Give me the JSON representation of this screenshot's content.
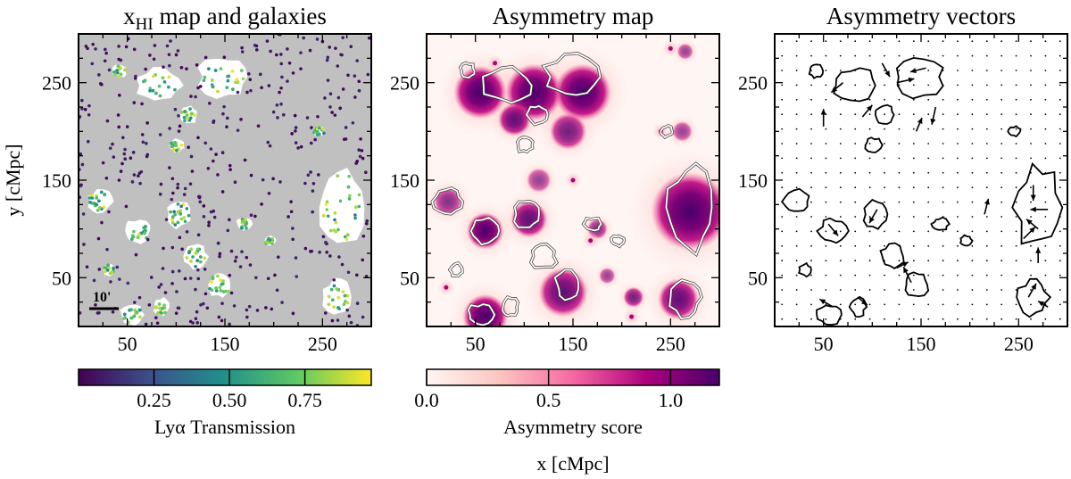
{
  "figure": {
    "ylabel": "y [cMpc]",
    "xlabel": "x [cMpc]",
    "scalebar_label": "10'"
  },
  "axes": {
    "xlim": [
      0,
      300
    ],
    "ylim": [
      0,
      300
    ],
    "xticks": [
      50,
      150,
      250
    ],
    "yticks": [
      50,
      150,
      250
    ]
  },
  "panels": [
    {
      "id": "xhi",
      "title_main": "x",
      "title_sub": "HI",
      "title_rest": " map and galaxies",
      "background": "#c0c0c0",
      "colorbar": {
        "label": "Lyα Transmission",
        "ticks": [
          "0.25",
          "0.50",
          "0.75"
        ],
        "tick_values": [
          0.25,
          0.5,
          0.75
        ],
        "range": [
          0.0,
          0.97
        ],
        "colormap": [
          "#440154",
          "#3b528b",
          "#21918c",
          "#5ec962",
          "#fde725"
        ]
      }
    },
    {
      "id": "asym",
      "title": "Asymmetry map",
      "colorbar": {
        "label": "Asymmetry score",
        "ticks": [
          "0.0",
          "0.5",
          "1.0"
        ],
        "tick_values": [
          0.0,
          0.5,
          1.0
        ],
        "range": [
          0.0,
          1.2
        ],
        "colormap": [
          "#fff7f3",
          "#fcc5c0",
          "#f768a1",
          "#ae017e",
          "#49006a"
        ]
      }
    },
    {
      "id": "vec",
      "title": "Asymmetry vectors"
    }
  ],
  "chart_data": [
    {
      "type": "scatter",
      "title": "x_HI map and galaxies",
      "ylabel": "y [cMpc]",
      "xlim": [
        0,
        300
      ],
      "ylim": [
        0,
        300
      ],
      "ionized_regions": [
        {
          "x": 42,
          "y": 262,
          "rx": 7,
          "ry": 7
        },
        {
          "x": 82,
          "y": 247,
          "rx": 22,
          "ry": 17
        },
        {
          "x": 148,
          "y": 256,
          "rx": 25,
          "ry": 20
        },
        {
          "x": 113,
          "y": 217,
          "rx": 9,
          "ry": 9
        },
        {
          "x": 101,
          "y": 186,
          "rx": 8,
          "ry": 7
        },
        {
          "x": 246,
          "y": 200,
          "rx": 6,
          "ry": 5
        },
        {
          "x": 270,
          "y": 122,
          "rx": 23,
          "ry": 40
        },
        {
          "x": 22,
          "y": 128,
          "rx": 13,
          "ry": 12
        },
        {
          "x": 60,
          "y": 98,
          "rx": 14,
          "ry": 12
        },
        {
          "x": 103,
          "y": 115,
          "rx": 12,
          "ry": 14
        },
        {
          "x": 120,
          "y": 72,
          "rx": 12,
          "ry": 12
        },
        {
          "x": 145,
          "y": 43,
          "rx": 12,
          "ry": 13
        },
        {
          "x": 170,
          "y": 105,
          "rx": 8,
          "ry": 6
        },
        {
          "x": 265,
          "y": 30,
          "rx": 15,
          "ry": 18
        },
        {
          "x": 55,
          "y": 12,
          "rx": 12,
          "ry": 10
        },
        {
          "x": 85,
          "y": 20,
          "rx": 8,
          "ry": 9
        },
        {
          "x": 31,
          "y": 58,
          "rx": 6,
          "ry": 6
        },
        {
          "x": 196,
          "y": 88,
          "rx": 6,
          "ry": 5
        }
      ],
      "colorbar_label": "Lyα Transmission"
    },
    {
      "type": "heatmap",
      "title": "Asymmetry map",
      "xlim": [
        0,
        300
      ],
      "ylim": [
        0,
        300
      ],
      "value_range": [
        0.0,
        1.2
      ],
      "hot_regions": [
        {
          "x": 55,
          "y": 240,
          "r": 26,
          "v": 1.0
        },
        {
          "x": 110,
          "y": 240,
          "r": 28,
          "v": 1.1
        },
        {
          "x": 160,
          "y": 240,
          "r": 28,
          "v": 1.0
        },
        {
          "x": 145,
          "y": 200,
          "r": 18,
          "v": 0.8
        },
        {
          "x": 90,
          "y": 212,
          "r": 16,
          "v": 0.9
        },
        {
          "x": 270,
          "y": 118,
          "r": 38,
          "v": 1.1
        },
        {
          "x": 60,
          "y": 98,
          "r": 18,
          "v": 1.0
        },
        {
          "x": 105,
          "y": 110,
          "r": 18,
          "v": 0.9
        },
        {
          "x": 140,
          "y": 35,
          "r": 24,
          "v": 0.9
        },
        {
          "x": 258,
          "y": 28,
          "r": 20,
          "v": 0.9
        },
        {
          "x": 60,
          "y": 10,
          "r": 22,
          "v": 1.0
        },
        {
          "x": 22,
          "y": 128,
          "r": 14,
          "v": 0.7
        },
        {
          "x": 115,
          "y": 150,
          "r": 12,
          "v": 0.6
        },
        {
          "x": 175,
          "y": 100,
          "r": 10,
          "v": 0.7
        },
        {
          "x": 212,
          "y": 30,
          "r": 10,
          "v": 0.8
        },
        {
          "x": 185,
          "y": 52,
          "r": 8,
          "v": 0.6
        },
        {
          "x": 262,
          "y": 200,
          "r": 10,
          "v": 0.6
        },
        {
          "x": 265,
          "y": 282,
          "r": 8,
          "v": 0.6
        }
      ],
      "colorbar_label": "Asymmetry score"
    },
    {
      "type": "quiver",
      "title": "Asymmetry vectors",
      "xlim": [
        0,
        300
      ],
      "ylim": [
        0,
        300
      ],
      "grid_step": 15,
      "vectors": [
        {
          "x": 50,
          "y": 205,
          "u": 0,
          "v": 18
        },
        {
          "x": 70,
          "y": 250,
          "u": -12,
          "v": -10
        },
        {
          "x": 110,
          "y": 270,
          "u": 8,
          "v": -14
        },
        {
          "x": 125,
          "y": 250,
          "u": 18,
          "v": 4
        },
        {
          "x": 155,
          "y": 265,
          "u": -16,
          "v": -4
        },
        {
          "x": 165,
          "y": 225,
          "u": -4,
          "v": -18
        },
        {
          "x": 145,
          "y": 200,
          "u": 6,
          "v": 14
        },
        {
          "x": 90,
          "y": 215,
          "u": 10,
          "v": 12
        },
        {
          "x": 265,
          "y": 145,
          "u": 0,
          "v": -16
        },
        {
          "x": 280,
          "y": 120,
          "u": -18,
          "v": 0
        },
        {
          "x": 255,
          "y": 90,
          "u": 12,
          "v": 12
        },
        {
          "x": 270,
          "y": 65,
          "u": 0,
          "v": 16
        },
        {
          "x": 270,
          "y": 100,
          "u": -12,
          "v": 10
        },
        {
          "x": 55,
          "y": 105,
          "u": 10,
          "v": -12
        },
        {
          "x": 105,
          "y": 120,
          "u": -8,
          "v": -14
        },
        {
          "x": 140,
          "y": 45,
          "u": -8,
          "v": 16
        },
        {
          "x": 125,
          "y": 60,
          "u": 12,
          "v": 6
        },
        {
          "x": 215,
          "y": 115,
          "u": 4,
          "v": 16
        },
        {
          "x": 60,
          "y": 20,
          "u": -14,
          "v": 8
        },
        {
          "x": 85,
          "y": 30,
          "u": 10,
          "v": -8
        },
        {
          "x": 260,
          "y": 30,
          "u": 8,
          "v": 14
        },
        {
          "x": 280,
          "y": 20,
          "u": -10,
          "v": 6
        }
      ]
    }
  ]
}
